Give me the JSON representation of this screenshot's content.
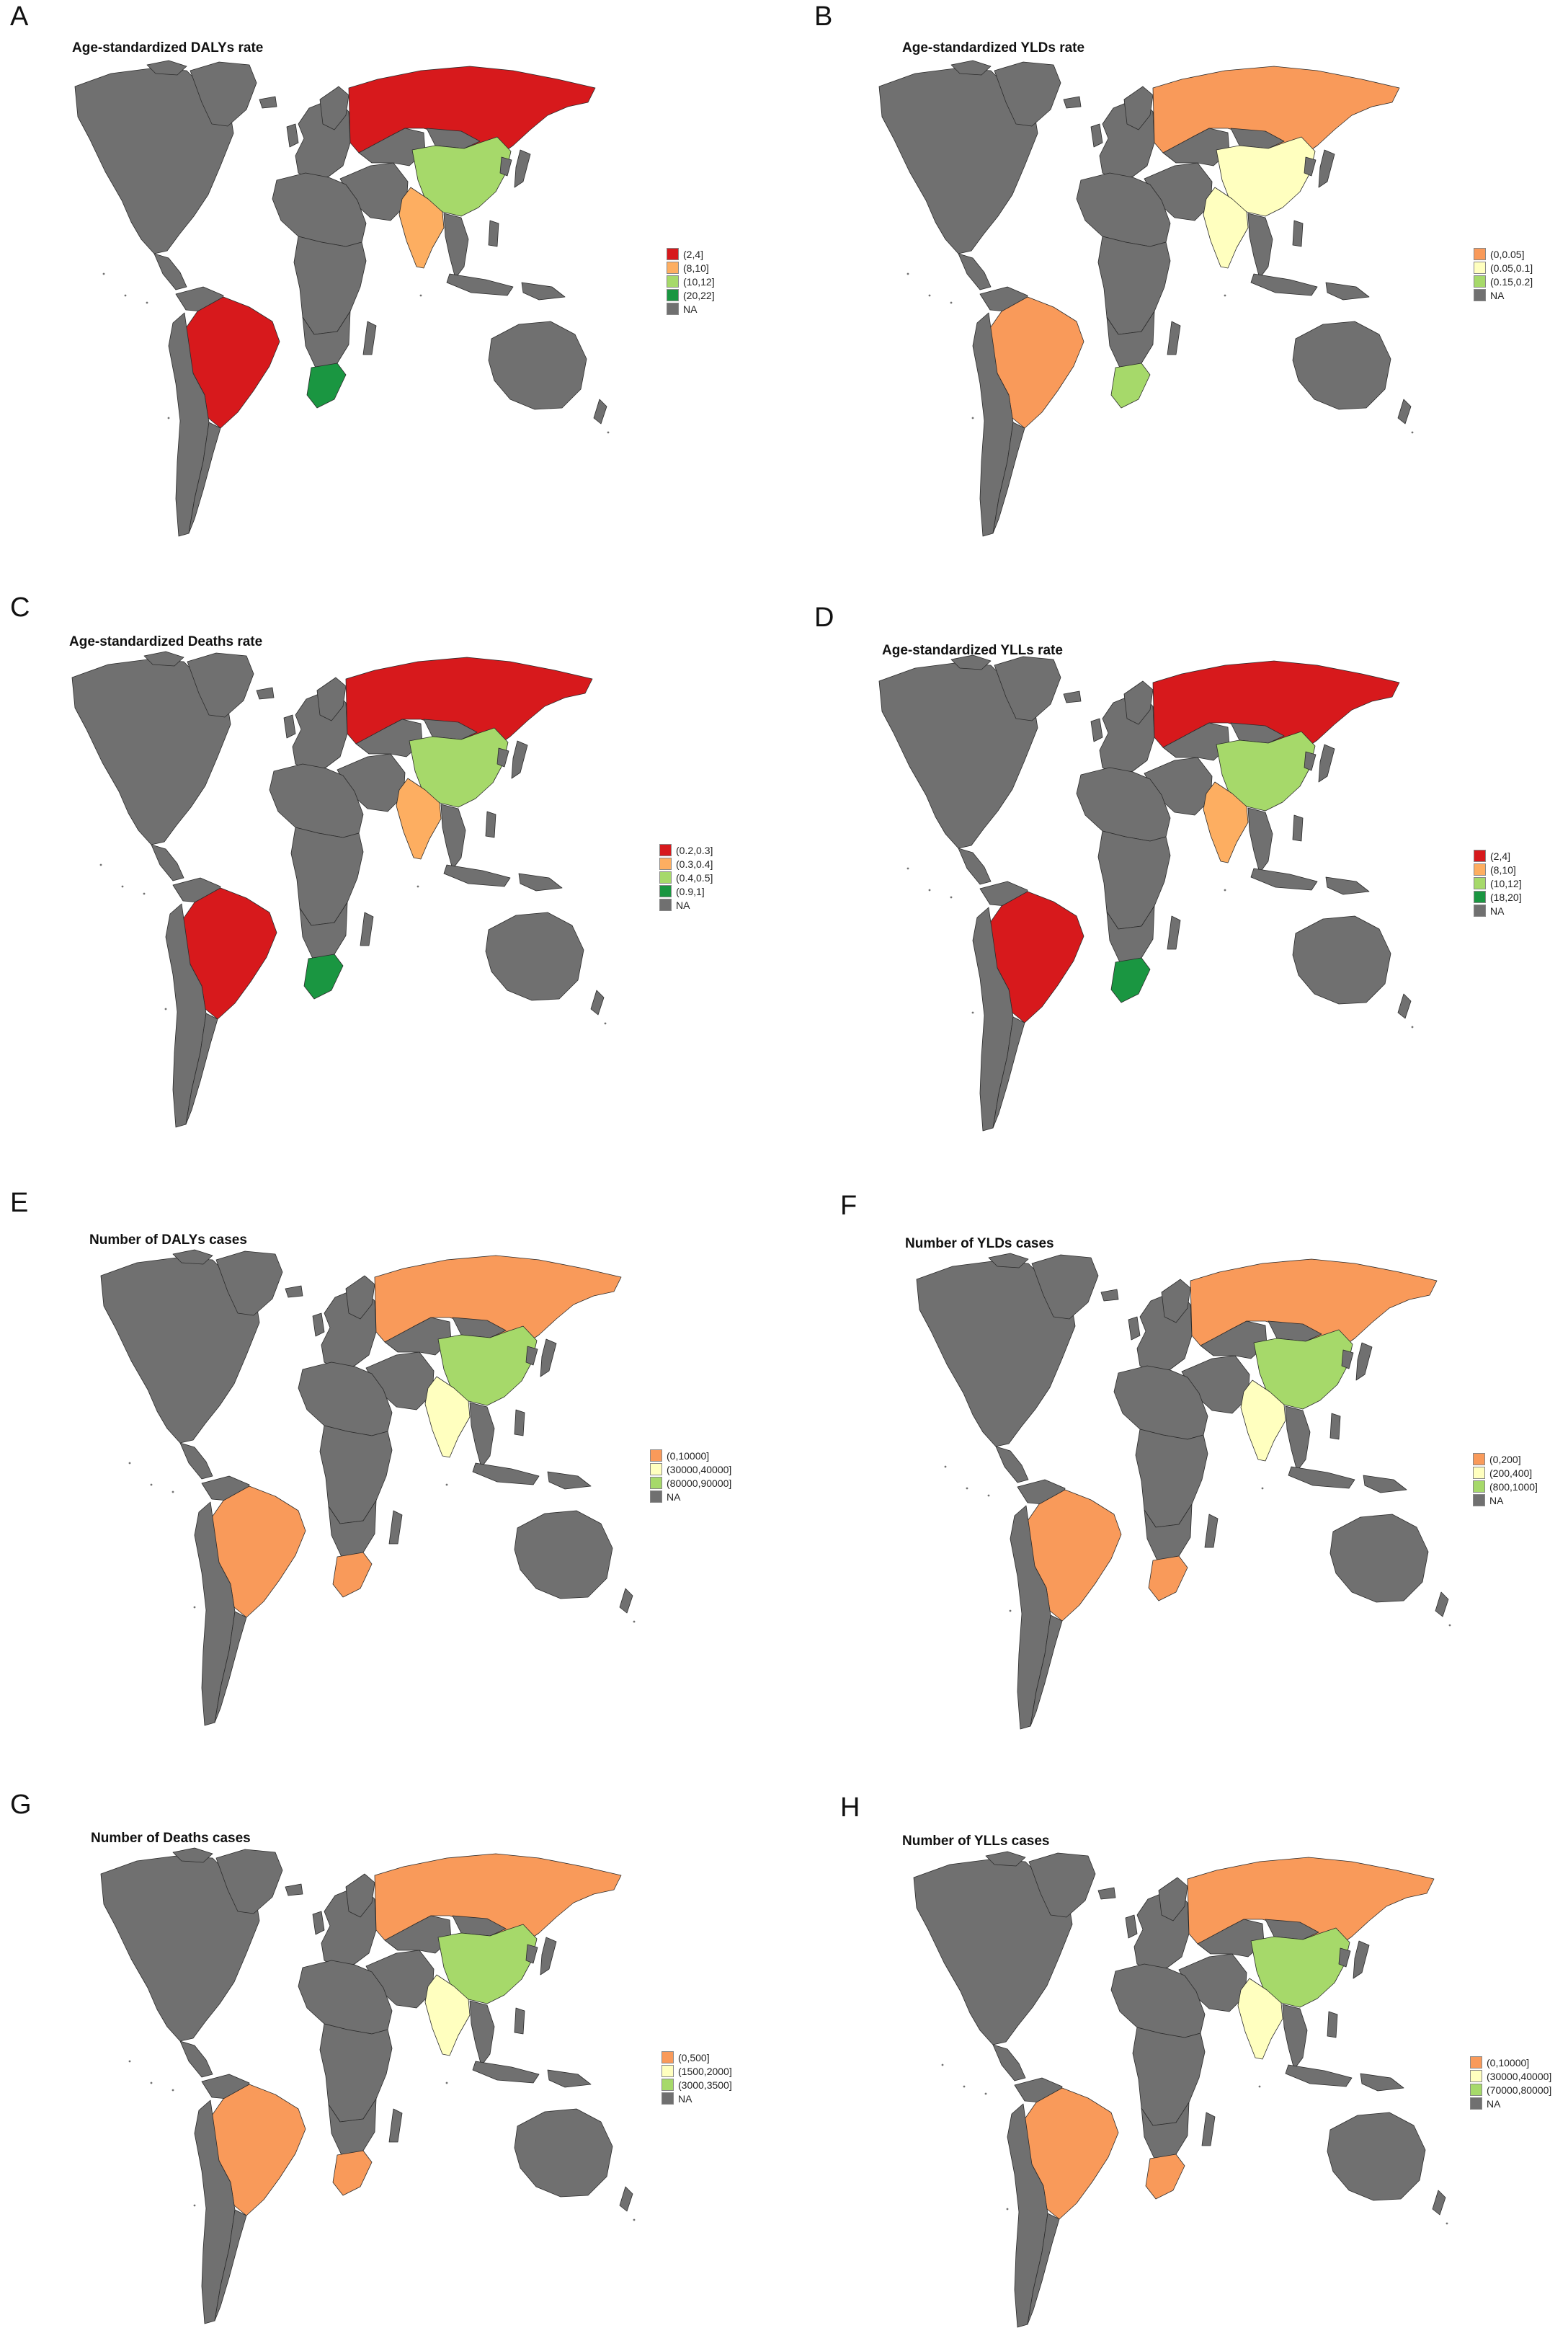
{
  "colors": {
    "NA": "#707070",
    "red": "#d7191c",
    "orange": "#fdae61",
    "salmon": "#f99a5a",
    "paleyellow": "#ffffbf",
    "lightgreen": "#a6d96a",
    "midgreen": "#66bd63",
    "darkgreen": "#1a9641",
    "border": "#2b2b2b"
  },
  "panels": [
    {
      "letter": "A",
      "title": "Age-standardized DALYs rate",
      "fills": {
        "russia": "red",
        "china": "lightgreen",
        "india": "orange",
        "brazil": "red",
        "southafrica": "darkgreen"
      },
      "legend": [
        {
          "label": "(2,4]",
          "color": "red"
        },
        {
          "label": "(8,10]",
          "color": "orange"
        },
        {
          "label": "(10,12]",
          "color": "lightgreen"
        },
        {
          "label": "(20,22]",
          "color": "darkgreen"
        },
        {
          "label": "NA",
          "color": "NA"
        }
      ]
    },
    {
      "letter": "B",
      "title": "Age-standardized YLDs rate",
      "fills": {
        "russia": "salmon",
        "china": "paleyellow",
        "india": "paleyellow",
        "brazil": "salmon",
        "southafrica": "lightgreen"
      },
      "legend": [
        {
          "label": "(0,0.05]",
          "color": "salmon"
        },
        {
          "label": "(0.05,0.1]",
          "color": "paleyellow"
        },
        {
          "label": "(0.15,0.2]",
          "color": "lightgreen"
        },
        {
          "label": "NA",
          "color": "NA"
        }
      ]
    },
    {
      "letter": "C",
      "title": "Age-standardized Deaths rate",
      "fills": {
        "russia": "red",
        "china": "lightgreen",
        "india": "orange",
        "brazil": "red",
        "southafrica": "darkgreen"
      },
      "legend": [
        {
          "label": "(0.2,0.3]",
          "color": "red"
        },
        {
          "label": "(0.3,0.4]",
          "color": "orange"
        },
        {
          "label": "(0.4,0.5]",
          "color": "lightgreen"
        },
        {
          "label": "(0.9,1]",
          "color": "darkgreen"
        },
        {
          "label": "NA",
          "color": "NA"
        }
      ]
    },
    {
      "letter": "D",
      "title": "Age-standardized YLLs rate",
      "fills": {
        "russia": "red",
        "china": "lightgreen",
        "india": "orange",
        "brazil": "red",
        "southafrica": "darkgreen"
      },
      "legend": [
        {
          "label": "(2,4]",
          "color": "red"
        },
        {
          "label": "(8,10]",
          "color": "orange"
        },
        {
          "label": "(10,12]",
          "color": "lightgreen"
        },
        {
          "label": "(18,20]",
          "color": "darkgreen"
        },
        {
          "label": "NA",
          "color": "NA"
        }
      ]
    },
    {
      "letter": "E",
      "title": "Number of DALYs cases",
      "fills": {
        "russia": "salmon",
        "china": "lightgreen",
        "india": "paleyellow",
        "brazil": "salmon",
        "southafrica": "salmon"
      },
      "legend": [
        {
          "label": "(0,10000]",
          "color": "salmon"
        },
        {
          "label": "(30000,40000]",
          "color": "paleyellow"
        },
        {
          "label": "(80000,90000]",
          "color": "lightgreen"
        },
        {
          "label": "NA",
          "color": "NA"
        }
      ]
    },
    {
      "letter": "F",
      "title": "Number of YLDs cases",
      "fills": {
        "russia": "salmon",
        "china": "lightgreen",
        "india": "paleyellow",
        "brazil": "salmon",
        "southafrica": "salmon"
      },
      "legend": [
        {
          "label": "(0,200]",
          "color": "salmon"
        },
        {
          "label": "(200,400]",
          "color": "paleyellow"
        },
        {
          "label": "(800,1000]",
          "color": "lightgreen"
        },
        {
          "label": "NA",
          "color": "NA"
        }
      ]
    },
    {
      "letter": "G",
      "title": "Number of Deaths cases",
      "fills": {
        "russia": "salmon",
        "china": "lightgreen",
        "india": "paleyellow",
        "brazil": "salmon",
        "southafrica": "salmon"
      },
      "legend": [
        {
          "label": "(0,500]",
          "color": "salmon"
        },
        {
          "label": "(1500,2000]",
          "color": "paleyellow"
        },
        {
          "label": "(3000,3500]",
          "color": "lightgreen"
        },
        {
          "label": "NA",
          "color": "NA"
        }
      ]
    },
    {
      "letter": "H",
      "title": "Number of YLLs cases",
      "fills": {
        "russia": "salmon",
        "china": "lightgreen",
        "india": "paleyellow",
        "brazil": "salmon",
        "southafrica": "salmon"
      },
      "legend": [
        {
          "label": "(0,10000]",
          "color": "salmon"
        },
        {
          "label": "(30000,40000]",
          "color": "paleyellow"
        },
        {
          "label": "(70000,80000]",
          "color": "lightgreen"
        },
        {
          "label": "NA",
          "color": "NA"
        }
      ]
    }
  ]
}
